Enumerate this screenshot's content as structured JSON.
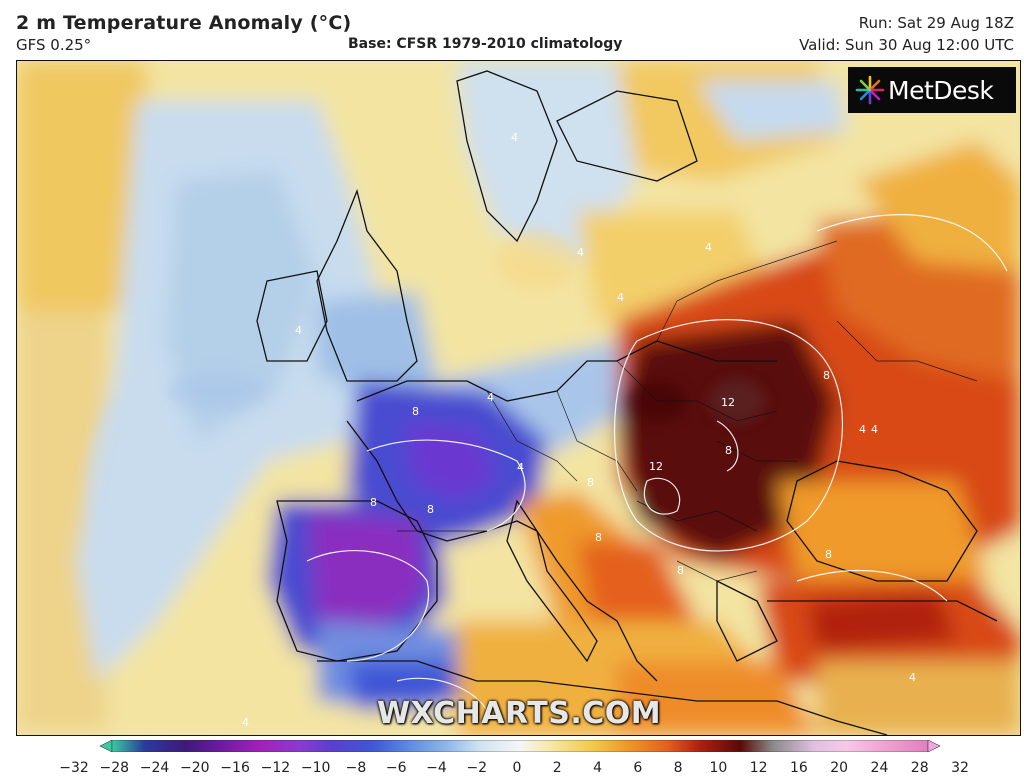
{
  "header": {
    "title": "2 m Temperature Anomaly (°C)",
    "model": "GFS 0.25°",
    "base": "Base: CFSR 1979-2010 climatology",
    "run": "Run: Sat 29 Aug 18Z",
    "valid": "Valid: Sun 30 Aug 12:00 UTC"
  },
  "logo": {
    "text": "MetDesk",
    "icon": "metdesk-burst-icon"
  },
  "watermark": "WXCHARTS.COM",
  "contour_labels": [
    "4",
    "4",
    "4",
    "4",
    "4",
    "4",
    "4",
    "4",
    "4",
    "8",
    "8",
    "8",
    "8",
    "8",
    "12",
    "12",
    "8",
    "8",
    "8",
    "8",
    "4",
    "4"
  ],
  "colorbar": {
    "ticks": [
      "−32",
      "−28",
      "−24",
      "−20",
      "−16",
      "−12",
      "−10",
      "−8",
      "−6",
      "−4",
      "−2",
      "0",
      "2",
      "4",
      "6",
      "8",
      "10",
      "12",
      "16",
      "20",
      "24",
      "28",
      "32"
    ],
    "colors": [
      "#3cc9a0",
      "#2a3a9e",
      "#3d1a7a",
      "#6a1aa0",
      "#a320b8",
      "#8a3ad0",
      "#5a3fcf",
      "#3f57d6",
      "#5a86e0",
      "#8fb6ea",
      "#cfe2f2",
      "#f6f6f6",
      "#f7e7a0",
      "#f2c84a",
      "#ef9a2a",
      "#e4601e",
      "#b0200e",
      "#5a0a08",
      "#8a8a8a",
      "#e0c0e0",
      "#f7c8e8",
      "#f0a0d0",
      "#e080c0"
    ],
    "arrow_left_color": "#3cc9a0",
    "arrow_right_color": "#f0a8e0"
  }
}
